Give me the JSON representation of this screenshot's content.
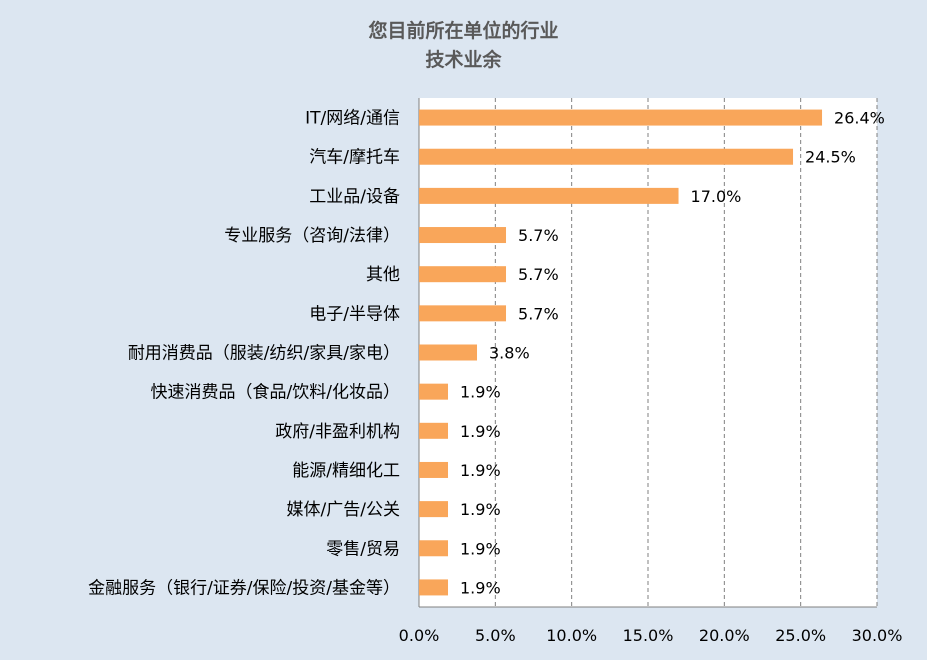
{
  "chart_data": {
    "type": "bar",
    "orientation": "horizontal",
    "title": "您目前所在单位的行业",
    "subtitle": "技术业余",
    "categories": [
      "IT/网络/通信",
      "汽车/摩托车",
      "工业品/设备",
      "专业服务（咨询/法律）",
      "其他",
      "电子/半导体",
      "耐用消费品（服装/纺织/家具/家电）",
      "快速消费品（食品/饮料/化妆品）",
      "政府/非盈利机构",
      "能源/精细化工",
      "媒体/广告/公关",
      "零售/贸易",
      "金融服务（银行/证券/保险/投资/基金等）"
    ],
    "values": [
      26.4,
      24.5,
      17.0,
      5.7,
      5.7,
      5.7,
      3.8,
      1.9,
      1.9,
      1.9,
      1.9,
      1.9,
      1.9
    ],
    "value_labels": [
      "26.4%",
      "24.5%",
      "17.0%",
      "5.7%",
      "5.7%",
      "5.7%",
      "3.8%",
      "1.9%",
      "1.9%",
      "1.9%",
      "1.9%",
      "1.9%",
      "1.9%"
    ],
    "x_ticks": [
      "0.0%",
      "5.0%",
      "10.0%",
      "15.0%",
      "20.0%",
      "25.0%",
      "30.0%"
    ],
    "xlim": [
      0,
      30
    ],
    "xlabel": "",
    "ylabel": "",
    "grid": "vertical dashed",
    "legend": "none",
    "bar_color": "#f9a65a",
    "background_color": "#dce6f1",
    "plot_background_color": "#ffffff"
  }
}
